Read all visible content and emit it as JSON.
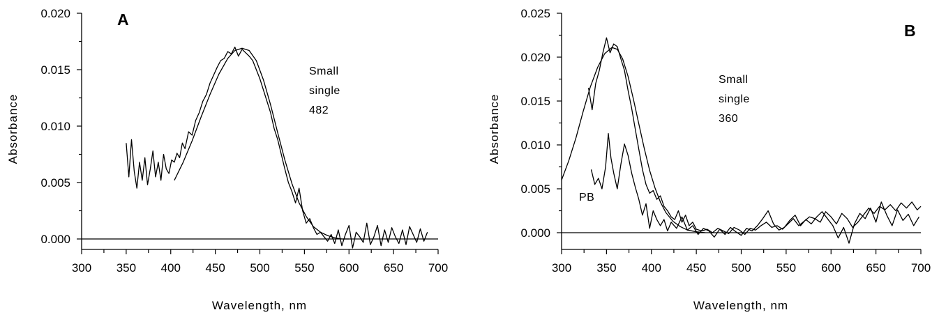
{
  "chart_data": [
    {
      "type": "line",
      "panel_label": "A",
      "xlabel": "Wavelength, nm",
      "ylabel": "Absorbance",
      "xlim": [
        300,
        700
      ],
      "ylim": [
        -0.001,
        0.02
      ],
      "xticks": [
        "300",
        "350",
        "400",
        "450",
        "500",
        "550",
        "600",
        "650",
        "700"
      ],
      "yticks": [
        "0.000",
        "0.005",
        "0.010",
        "0.015",
        "0.020"
      ],
      "annotation": [
        "Small",
        "single",
        "482"
      ],
      "series": [
        {
          "role": "measured",
          "x": [
            350,
            353,
            356,
            359,
            362,
            365,
            368,
            371,
            374,
            377,
            380,
            383,
            386,
            389,
            392,
            395,
            398,
            401,
            404,
            407,
            410,
            413,
            416,
            420,
            424,
            428,
            432,
            436,
            440,
            444,
            448,
            452,
            456,
            460,
            464,
            468,
            472,
            476,
            480,
            484,
            488,
            492,
            496,
            500,
            504,
            508,
            512,
            516,
            520,
            524,
            528,
            532,
            536,
            540,
            544,
            548,
            552,
            556,
            560,
            564,
            568,
            572,
            576,
            580,
            584,
            588,
            592,
            596,
            600,
            604,
            608,
            612,
            616,
            620,
            624,
            628,
            632,
            636,
            640,
            644,
            648,
            652,
            656,
            660,
            664,
            668,
            672,
            676,
            680,
            684,
            688
          ],
          "y": [
            0.0085,
            0.0055,
            0.0088,
            0.006,
            0.0045,
            0.0068,
            0.0052,
            0.0072,
            0.0048,
            0.0062,
            0.0078,
            0.0055,
            0.0068,
            0.0052,
            0.0075,
            0.0062,
            0.0058,
            0.007,
            0.0068,
            0.0076,
            0.0072,
            0.0085,
            0.008,
            0.0095,
            0.0092,
            0.0105,
            0.0112,
            0.0122,
            0.0128,
            0.0138,
            0.0145,
            0.0152,
            0.0158,
            0.016,
            0.0166,
            0.0164,
            0.017,
            0.0162,
            0.0168,
            0.0165,
            0.0162,
            0.0158,
            0.015,
            0.0142,
            0.0132,
            0.0122,
            0.0112,
            0.0098,
            0.0088,
            0.0075,
            0.0062,
            0.005,
            0.0042,
            0.0032,
            0.0045,
            0.0025,
            0.0014,
            0.0018,
            0.001,
            0.0004,
            0.0006,
            0.0002,
            -0.0002,
            0.0004,
            -0.0004,
            0.0008,
            -0.0006,
            0.0004,
            0.0012,
            -0.0008,
            0.0006,
            0.0002,
            -0.0003,
            0.0014,
            -0.0005,
            0.0002,
            0.0012,
            -0.0006,
            0.0008,
            -0.0003,
            0.001,
            0.0002,
            -0.0004,
            0.0008,
            -0.0005,
            0.0011,
            0.0004,
            -0.0003,
            0.0009,
            -0.0002,
            0.0006
          ]
        },
        {
          "role": "fit",
          "x": [
            404,
            414,
            424,
            434,
            444,
            454,
            464,
            472,
            480,
            488,
            496,
            504,
            512,
            520,
            528,
            536,
            544,
            552,
            560,
            568,
            576,
            584,
            592,
            600
          ],
          "y": [
            0.0052,
            0.0068,
            0.0087,
            0.0108,
            0.0128,
            0.0146,
            0.016,
            0.0167,
            0.0169,
            0.0167,
            0.0158,
            0.0141,
            0.0119,
            0.0094,
            0.007,
            0.0049,
            0.0032,
            0.002,
            0.0011,
            0.0006,
            0.0003,
            0.0001,
            0.0,
            0.0
          ]
        },
        {
          "role": "baseline",
          "x": [
            300,
            700
          ],
          "y": [
            0.0,
            0.0
          ]
        }
      ]
    },
    {
      "type": "line",
      "panel_label": "B",
      "xlabel": "Wavelength, nm",
      "ylabel": "Absorbance",
      "xlim": [
        300,
        700
      ],
      "ylim": [
        -0.002,
        0.025
      ],
      "xticks": [
        "300",
        "350",
        "400",
        "450",
        "500",
        "550",
        "600",
        "650",
        "700"
      ],
      "yticks": [
        "0.000",
        "0.005",
        "0.010",
        "0.015",
        "0.020",
        "0.025"
      ],
      "annotation": [
        "Small",
        "single",
        "360"
      ],
      "series_label": "PB",
      "series": [
        {
          "role": "measured",
          "x": [
            330,
            334,
            338,
            342,
            346,
            350,
            354,
            358,
            362,
            366,
            370,
            374,
            378,
            382,
            386,
            390,
            394,
            398,
            402,
            406,
            410,
            414,
            418,
            422,
            426,
            430,
            434,
            438,
            442,
            446,
            450,
            456,
            462,
            468,
            474,
            480,
            486,
            492,
            498,
            504,
            510,
            516,
            522,
            528,
            534,
            540,
            546,
            552,
            558,
            564,
            570,
            576,
            582,
            588,
            594,
            600,
            606,
            612,
            618,
            624,
            630,
            636,
            642,
            648,
            654,
            660,
            666,
            672,
            678,
            684,
            690,
            696,
            700
          ],
          "y": [
            0.0165,
            0.014,
            0.017,
            0.0185,
            0.0205,
            0.0222,
            0.0205,
            0.0215,
            0.0212,
            0.0198,
            0.0185,
            0.0162,
            0.0142,
            0.0118,
            0.0095,
            0.0072,
            0.0055,
            0.0045,
            0.0048,
            0.0038,
            0.0042,
            0.003,
            0.0025,
            0.0018,
            0.0015,
            0.0025,
            0.0012,
            0.002,
            0.0008,
            0.0012,
            0.0004,
            0.0002,
            0.0004,
            0.0,
            0.0005,
            0.0002,
            -0.0001,
            0.0006,
            0.0003,
            -0.0002,
            0.0005,
            0.0003,
            0.0008,
            0.0012,
            0.0006,
            0.0008,
            0.0004,
            0.001,
            0.0016,
            0.0008,
            0.0013,
            0.0018,
            0.0016,
            0.0012,
            0.0024,
            0.0018,
            0.001,
            0.0022,
            0.0016,
            0.0006,
            0.0012,
            0.002,
            0.0028,
            0.0022,
            0.003,
            0.0026,
            0.0032,
            0.0025,
            0.0034,
            0.0028,
            0.0035,
            0.0026,
            0.003
          ]
        },
        {
          "role": "measured",
          "x": [
            333,
            337,
            341,
            345,
            349,
            352,
            355,
            358,
            362,
            366,
            370,
            374,
            378,
            382,
            386,
            390,
            394,
            398,
            402,
            406,
            410,
            414,
            418,
            422,
            428,
            434,
            440,
            446,
            452,
            458,
            464,
            470,
            476,
            482,
            488,
            494,
            500,
            506,
            512,
            518,
            524,
            530,
            536,
            542,
            548,
            554,
            560,
            566,
            572,
            578,
            584,
            590,
            596,
            602,
            608,
            614,
            620,
            626,
            632,
            638,
            644,
            650,
            656,
            662,
            668,
            674,
            680,
            686,
            692,
            698
          ],
          "y": [
            0.0072,
            0.0055,
            0.0062,
            0.005,
            0.0075,
            0.0113,
            0.0085,
            0.0068,
            0.005,
            0.0078,
            0.0101,
            0.0088,
            0.0068,
            0.0052,
            0.0038,
            0.002,
            0.0033,
            0.0005,
            0.0025,
            0.0015,
            0.0008,
            0.0015,
            0.0002,
            0.0012,
            0.0005,
            0.0018,
            0.0003,
            0.0008,
            -0.0002,
            0.0005,
            0.0002,
            -0.0005,
            0.0004,
            -0.0002,
            0.0006,
            0.0001,
            -0.0003,
            0.0005,
            0.0002,
            0.0008,
            0.0016,
            0.0025,
            0.001,
            0.0003,
            0.0006,
            0.0014,
            0.002,
            0.0008,
            0.0015,
            0.001,
            0.0018,
            0.0024,
            0.0016,
            0.0008,
            -0.0006,
            0.0006,
            -0.0012,
            0.001,
            0.0022,
            0.0016,
            0.0028,
            0.0012,
            0.0035,
            0.002,
            0.0008,
            0.0026,
            0.0014,
            0.0021,
            0.0008,
            0.0018
          ]
        },
        {
          "role": "fit",
          "x": [
            300,
            308,
            316,
            324,
            332,
            340,
            348,
            356,
            362,
            368,
            374,
            380,
            386,
            392,
            398,
            404,
            410,
            416,
            424,
            432,
            440,
            450,
            460
          ],
          "y": [
            0.006,
            0.0082,
            0.0108,
            0.0138,
            0.0166,
            0.0188,
            0.0204,
            0.0211,
            0.0209,
            0.0198,
            0.0178,
            0.0152,
            0.0124,
            0.0096,
            0.0071,
            0.0051,
            0.0035,
            0.0023,
            0.0013,
            0.0007,
            0.0003,
            0.0001,
            0.0
          ]
        },
        {
          "role": "baseline",
          "x": [
            300,
            700
          ],
          "y": [
            0.0,
            0.0
          ]
        }
      ]
    }
  ]
}
